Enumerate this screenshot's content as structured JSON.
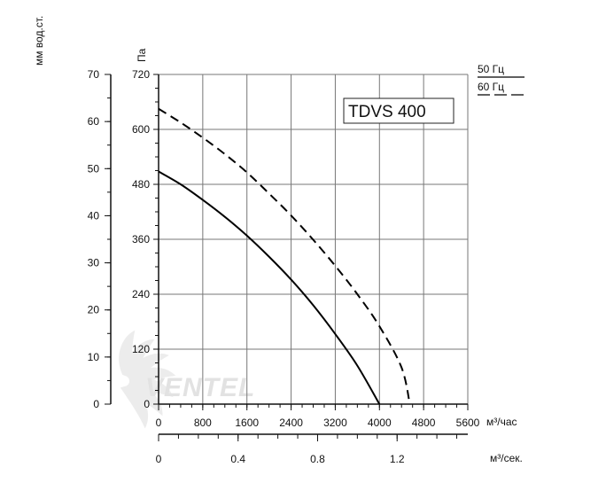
{
  "chart_data": {
    "type": "line",
    "model_label": "TDVS 400",
    "watermark": "VENTEL",
    "x_axis": {
      "label": "м³/час",
      "range": [
        0,
        5600
      ],
      "ticks": [
        "0",
        "800",
        "1600",
        "2400",
        "3200",
        "4000",
        "4800",
        "5600"
      ]
    },
    "x2_axis": {
      "label": "м³/сек.",
      "range": [
        0,
        1.5556
      ],
      "ticks": [
        "0",
        "0.4",
        "0.8",
        "1.2"
      ]
    },
    "y_axis": {
      "label": "Па",
      "range": [
        0,
        720
      ],
      "ticks": [
        "0",
        "120",
        "240",
        "360",
        "480",
        "600",
        "720"
      ]
    },
    "y2_axis": {
      "label": "мм вод.ст.",
      "range": [
        0,
        70
      ],
      "ticks": [
        "0",
        "10",
        "20",
        "30",
        "40",
        "50",
        "60",
        "70"
      ]
    },
    "grid": true,
    "legend": [
      {
        "name": "50 Гц",
        "style": "solid"
      },
      {
        "name": "60 Гц",
        "style": "dashed"
      }
    ],
    "series": [
      {
        "name": "50 Гц",
        "style": "solid",
        "x": [
          0,
          400,
          800,
          1200,
          1600,
          2000,
          2400,
          2800,
          3200,
          3600,
          4000
        ],
        "y": [
          508,
          480,
          446,
          409,
          368,
          322,
          272,
          216,
          153,
          84,
          0
        ]
      },
      {
        "name": "60 Гц",
        "style": "dashed",
        "x": [
          0,
          400,
          800,
          1200,
          1600,
          2000,
          2400,
          2800,
          3200,
          3600,
          4000,
          4400,
          4550
        ],
        "y": [
          645,
          615,
          582,
          546,
          506,
          460,
          412,
          359,
          302,
          240,
          170,
          80,
          0
        ]
      }
    ]
  }
}
